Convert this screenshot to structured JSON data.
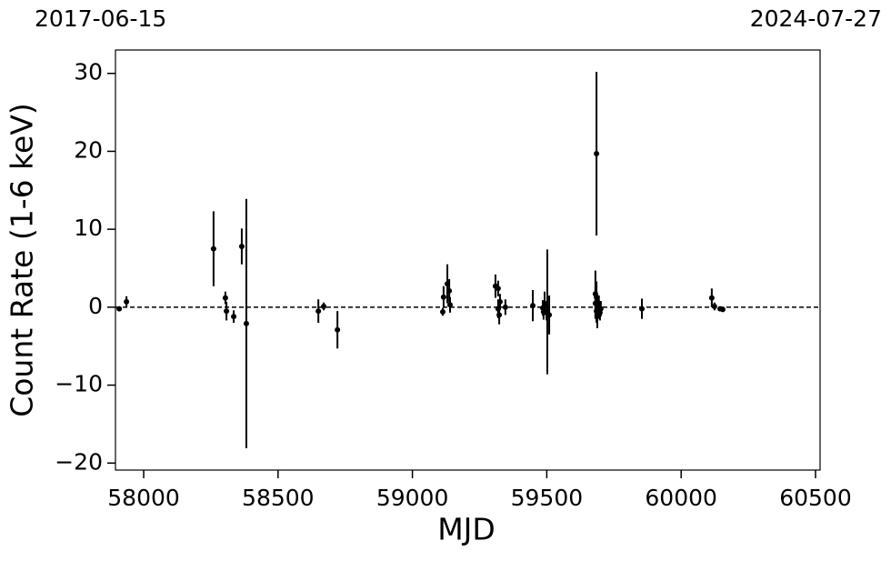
{
  "chart_data": {
    "type": "scatter",
    "top_labels": [
      "2017-06-15",
      "2024-07-27"
    ],
    "xlabel": "MJD",
    "ylabel": "Count Rate (1-6 keV)",
    "xlim": [
      57895,
      60517
    ],
    "ylim": [
      -20.9,
      33
    ],
    "xticks": [
      58000,
      58500,
      59000,
      59500,
      60000,
      60500
    ],
    "yticks": [
      {
        "value": -20,
        "label": "−20"
      },
      {
        "value": -10,
        "label": "−10"
      },
      0,
      10,
      20,
      30
    ],
    "hline": 0,
    "series": [
      {
        "color": "#000000",
        "x": [
          57909,
          57936,
          58260,
          58304,
          58308,
          58335,
          58365,
          58382,
          58650,
          58670,
          58721,
          59113,
          59116,
          59130,
          59137,
          59140,
          59309,
          59319,
          59319,
          59323,
          59326,
          59346,
          59448,
          59485,
          59488,
          59492,
          59499,
          59502,
          59509,
          59685,
          59681,
          59685,
          59681,
          59685,
          59688,
          59691,
          59698,
          59701,
          59694,
          59854,
          60114,
          60124,
          60145,
          60155
        ],
        "values": [
          -0.2,
          0.7,
          7.5,
          1.2,
          -0.5,
          -1.2,
          7.8,
          -2.1,
          -0.5,
          0.1,
          -2.9,
          -0.6,
          1.3,
          3.0,
          2.1,
          0.3,
          2.7,
          2.4,
          -0.2,
          -1.0,
          0.7,
          0,
          0.2,
          -0.1,
          -0.6,
          0.5,
          -0.7,
          -0.6,
          -1.0,
          19.7,
          1.7,
          1.3,
          0.5,
          -0.5,
          -1.2,
          0,
          -0.7,
          -0.2,
          0.5,
          -0.2,
          1.2,
          0.1,
          -0.2,
          -0.3
        ],
        "errors": [
          0.3,
          0.7,
          4.8,
          0.8,
          1.2,
          0.8,
          2.3,
          16,
          1.5,
          0.5,
          2.4,
          0.5,
          1.4,
          2.5,
          1.5,
          1.0,
          1.5,
          1.0,
          1.2,
          1.2,
          1.0,
          1.0,
          2.0,
          1.0,
          1.0,
          1.5,
          1.0,
          8.0,
          2.5,
          10.5,
          3.0,
          2.0,
          2.0,
          1.5,
          1.5,
          1.0,
          1.0,
          1.0,
          1.0,
          1.3,
          1.2,
          0.5,
          0.2,
          0.2
        ]
      }
    ]
  }
}
